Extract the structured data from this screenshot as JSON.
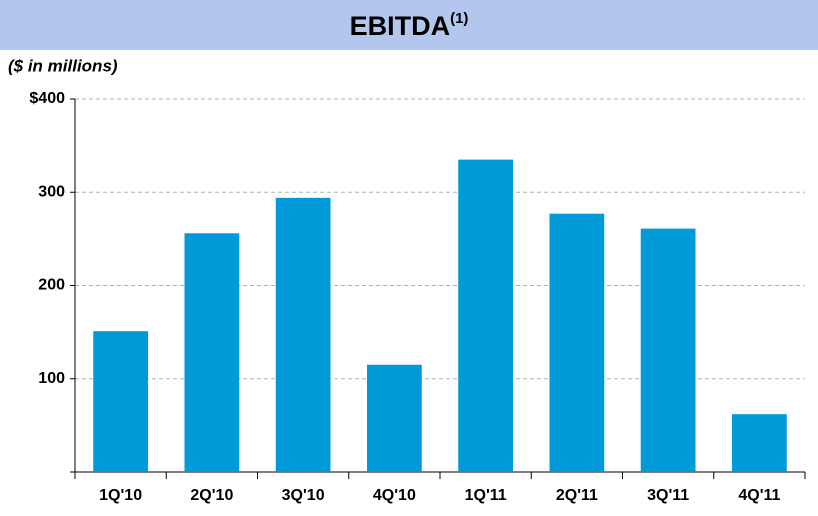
{
  "chart_data": {
    "type": "bar",
    "title": "EBITDA",
    "title_superscript": "(1)",
    "subtitle": "($ in millions)",
    "categories": [
      "1Q'10",
      "2Q'10",
      "3Q'10",
      "4Q'10",
      "1Q'11",
      "2Q'11",
      "3Q'11",
      "4Q'11"
    ],
    "values": [
      151,
      256,
      294,
      115,
      335,
      277,
      261,
      62
    ],
    "color": "#009ad8",
    "ylim": [
      0,
      400
    ],
    "yticks": [
      100,
      200,
      300,
      {
        "value": 400,
        "label": "$400"
      }
    ],
    "grid": true
  }
}
